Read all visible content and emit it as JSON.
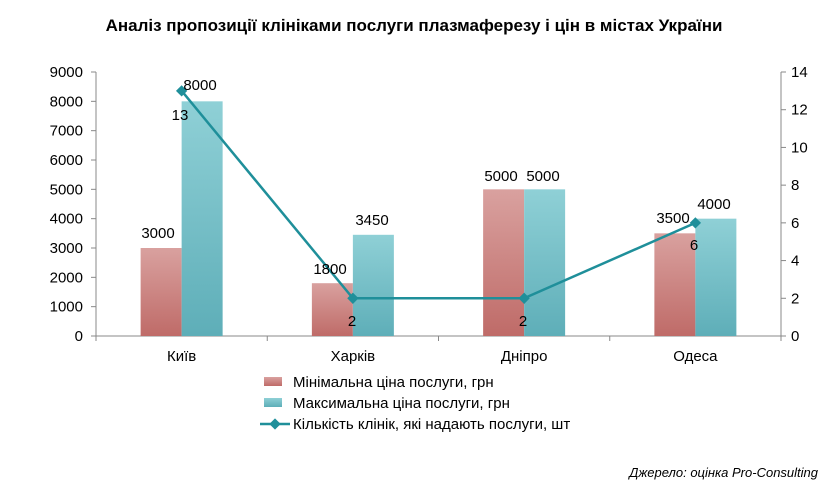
{
  "chart_data": {
    "type": "bar",
    "title": "Аналіз пропозиції клініками послуги плазмаферезу і цін в містах України",
    "categories": [
      "Київ",
      "Харків",
      "Дніпро",
      "Одеса"
    ],
    "series": [
      {
        "name": "Мінімальна ціна послуги, грн",
        "type": "bar",
        "axis": "left",
        "color": "#c0504d",
        "values": [
          3000,
          1800,
          5000,
          3500
        ],
        "labels": [
          "3000",
          "1800",
          "5000",
          "3500"
        ]
      },
      {
        "name": "Максимальна  ціна послуги, грн",
        "type": "bar",
        "axis": "left",
        "color": "#4bacc6",
        "values": [
          8000,
          3450,
          5000,
          4000
        ],
        "labels": [
          "8000",
          "3450",
          "5000",
          "4000"
        ]
      },
      {
        "name": "Кількість клінік, які надають послуги, шт",
        "type": "line",
        "axis": "right",
        "color": "#1f8f9a",
        "values": [
          13,
          2,
          2,
          6
        ],
        "labels": [
          "13",
          "2",
          "2",
          "6"
        ]
      }
    ],
    "y_left": {
      "min": 0,
      "max": 9000,
      "step": 1000,
      "ticks": [
        "0",
        "1000",
        "2000",
        "3000",
        "4000",
        "5000",
        "6000",
        "7000",
        "8000",
        "9000"
      ]
    },
    "y_right": {
      "min": 0,
      "max": 14,
      "step": 2,
      "ticks": [
        "0",
        "2",
        "4",
        "6",
        "8",
        "10",
        "12",
        "14"
      ]
    },
    "grid": false,
    "legend_position": "bottom"
  },
  "source": "Джерело: оцінка Pro-Consulting"
}
